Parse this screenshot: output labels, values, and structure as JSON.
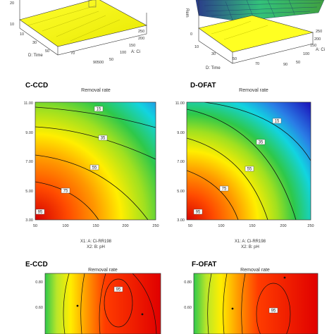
{
  "surfaces": {
    "left": {
      "z_ticks": [
        "20",
        "10"
      ],
      "x_name": "D: Time",
      "x_ticks": [
        "10",
        "30",
        "50",
        "70",
        "90"
      ],
      "y_name": "A: Ci",
      "y_ticks": [
        "250",
        "200",
        "150",
        "100",
        "50"
      ],
      "bottom_tick": "500"
    },
    "right": {
      "z_name": "Rem",
      "x_name": "D: Time",
      "x_ticks": [
        "0",
        "10",
        "30",
        "50",
        "70",
        "90"
      ],
      "y_name": "A: Ci",
      "y_ticks": [
        "250",
        "200",
        "150",
        "100",
        "50"
      ]
    }
  },
  "panel_labels": {
    "C": "C-CCD",
    "D": "D-OFAT",
    "E": "E-CCD",
    "F": "F-OFAT"
  },
  "chart_data": [
    {
      "type": "heatmap",
      "panel": "C-CCD",
      "title": "Removal rate",
      "xlabel": "X1: A: Ci-RR198",
      "ylabel": "X2: B: pH",
      "xlim": [
        50,
        250
      ],
      "ylim": [
        3.0,
        11.0
      ],
      "x_ticks": [
        "50",
        "100",
        "150",
        "200",
        "250"
      ],
      "y_ticks": [
        "3.00",
        "5.00",
        "7.00",
        "9.00",
        "11.00"
      ],
      "contour_levels": [
        95,
        75,
        55,
        35,
        15
      ],
      "colorscale": [
        "#d40000",
        "#ff8c00",
        "#ffff00",
        "#35c43a",
        "#00c8ff",
        "#1e1ec8"
      ]
    },
    {
      "type": "heatmap",
      "panel": "D-OFAT",
      "title": "Removal rate",
      "xlabel": "X1: A: Ci-RR198",
      "ylabel": "X2: B: pH",
      "xlim": [
        50,
        250
      ],
      "ylim": [
        3.0,
        11.0
      ],
      "x_ticks": [
        "50",
        "100",
        "150",
        "200",
        "250"
      ],
      "y_ticks": [
        "3.00",
        "5.00",
        "7.00",
        "9.00",
        "11.00"
      ],
      "contour_levels": [
        95,
        75,
        55,
        35,
        15
      ],
      "colorscale": [
        "#d40000",
        "#ff8c00",
        "#ffff00",
        "#35c43a",
        "#00c8ff",
        "#1e1ec8"
      ]
    },
    {
      "type": "heatmap",
      "panel": "E-CCD",
      "title": "Removal rate",
      "y_ticks": [
        "0.80",
        "0.60"
      ],
      "contour_levels": [
        95
      ],
      "colorscale": [
        "#d40000",
        "#ff8c00",
        "#ffff00",
        "#35c43a"
      ]
    },
    {
      "type": "heatmap",
      "panel": "F-OFAT",
      "title": "Removal rate",
      "y_ticks": [
        "0.80",
        "0.60"
      ],
      "contour_levels": [
        95
      ],
      "colorscale": [
        "#d40000",
        "#ff8c00",
        "#ffff00",
        "#35c43a"
      ]
    }
  ]
}
